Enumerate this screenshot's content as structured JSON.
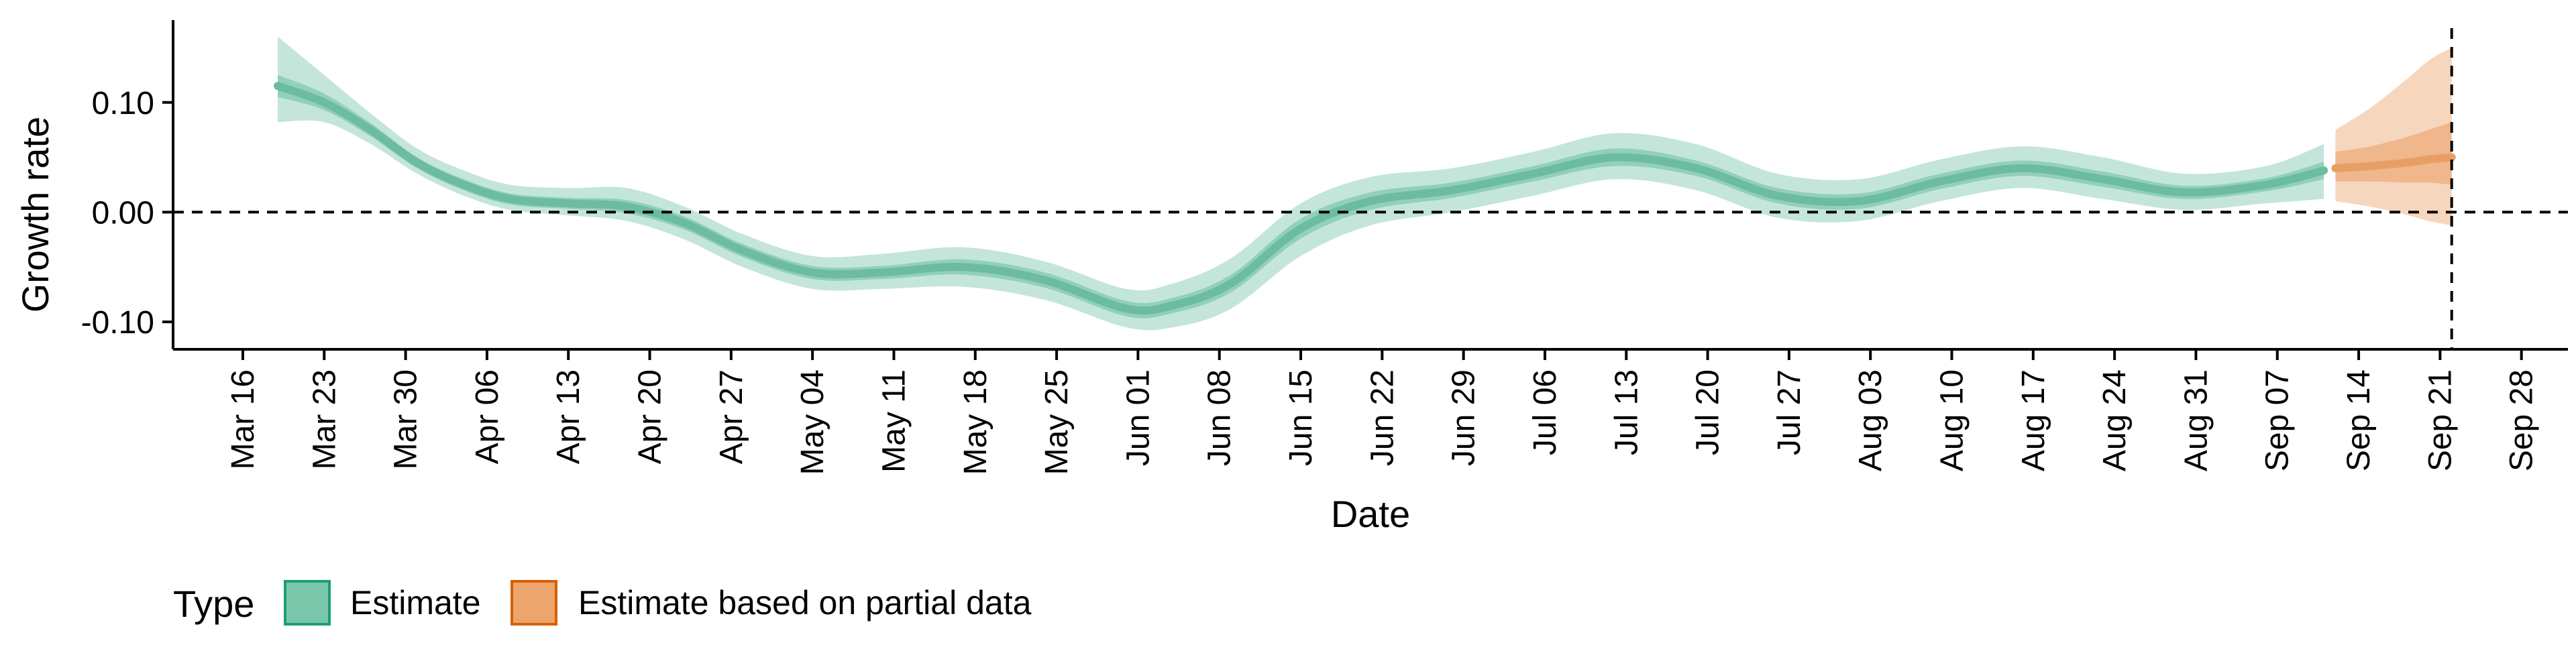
{
  "chart_data": {
    "type": "area",
    "ylabel": "Growth rate",
    "xlabel": "Date",
    "y_ticks": [
      -0.1,
      0.0,
      0.1
    ],
    "y_tick_labels": [
      "-0.10",
      "0.00",
      "0.10"
    ],
    "ylim": [
      -0.125,
      0.175
    ],
    "xlim": [
      "2020-03-10",
      "2020-10-02"
    ],
    "x_ticks": [
      "2020-03-16",
      "2020-03-23",
      "2020-03-30",
      "2020-04-06",
      "2020-04-13",
      "2020-04-20",
      "2020-04-27",
      "2020-05-04",
      "2020-05-11",
      "2020-05-18",
      "2020-05-25",
      "2020-06-01",
      "2020-06-08",
      "2020-06-15",
      "2020-06-22",
      "2020-06-29",
      "2020-07-06",
      "2020-07-13",
      "2020-07-20",
      "2020-07-27",
      "2020-08-03",
      "2020-08-10",
      "2020-08-17",
      "2020-08-24",
      "2020-08-31",
      "2020-09-07",
      "2020-09-14",
      "2020-09-21",
      "2020-09-28"
    ],
    "x_tick_labels": [
      "Mar 16",
      "Mar 23",
      "Mar 30",
      "Apr 06",
      "Apr 13",
      "Apr 20",
      "Apr 27",
      "May 04",
      "May 11",
      "May 18",
      "May 25",
      "Jun 01",
      "Jun 08",
      "Jun 15",
      "Jun 22",
      "Jun 29",
      "Jul 06",
      "Jul 13",
      "Jul 20",
      "Jul 27",
      "Aug 03",
      "Aug 10",
      "Aug 17",
      "Aug 24",
      "Aug 31",
      "Sep 07",
      "Sep 14",
      "Sep 21",
      "Sep 28"
    ],
    "hline_y": 0,
    "vline_x": "2020-09-22",
    "grid": false,
    "legend": {
      "title": "Type",
      "position": "bottom-left",
      "items": [
        {
          "label": "Estimate",
          "fill": "#7ac7ab",
          "stroke": "#1b9e77"
        },
        {
          "label": "Estimate based on partial data",
          "fill": "#eca56c",
          "stroke": "#d95f02"
        }
      ]
    },
    "series": [
      {
        "name": "Estimate",
        "colors": {
          "outer": "#c4e6da",
          "inner": "#92d0b9",
          "median": "#6cbc9f"
        },
        "points": [
          {
            "x": "2020-03-19",
            "median": 0.115,
            "lo90": 0.082,
            "hi90": 0.16,
            "lo50": 0.105,
            "hi50": 0.125
          },
          {
            "x": "2020-03-23",
            "median": 0.1,
            "lo90": 0.082,
            "hi90": 0.125,
            "lo50": 0.093,
            "hi50": 0.108
          },
          {
            "x": "2020-03-27",
            "median": 0.075,
            "lo90": 0.062,
            "hi90": 0.09,
            "lo50": 0.069,
            "hi50": 0.081
          },
          {
            "x": "2020-03-31",
            "median": 0.045,
            "lo90": 0.035,
            "hi90": 0.058,
            "lo50": 0.04,
            "hi50": 0.05
          },
          {
            "x": "2020-04-04",
            "median": 0.025,
            "lo90": 0.015,
            "hi90": 0.038,
            "lo50": 0.02,
            "hi50": 0.03
          },
          {
            "x": "2020-04-08",
            "median": 0.012,
            "lo90": 0.002,
            "hi90": 0.025,
            "lo50": 0.007,
            "hi50": 0.017
          },
          {
            "x": "2020-04-13",
            "median": 0.008,
            "lo90": -0.003,
            "hi90": 0.022,
            "lo50": 0.003,
            "hi50": 0.013
          },
          {
            "x": "2020-04-18",
            "median": 0.005,
            "lo90": -0.008,
            "hi90": 0.022,
            "lo50": -0.001,
            "hi50": 0.011
          },
          {
            "x": "2020-04-23",
            "median": -0.01,
            "lo90": -0.025,
            "hi90": 0.005,
            "lo50": -0.016,
            "hi50": -0.004
          },
          {
            "x": "2020-04-28",
            "median": -0.035,
            "lo90": -0.05,
            "hi90": -0.02,
            "lo50": -0.041,
            "hi50": -0.029
          },
          {
            "x": "2020-05-04",
            "median": -0.055,
            "lo90": -0.07,
            "hi90": -0.04,
            "lo50": -0.061,
            "hi50": -0.049
          },
          {
            "x": "2020-05-10",
            "median": -0.055,
            "lo90": -0.07,
            "hi90": -0.038,
            "lo50": -0.061,
            "hi50": -0.049
          },
          {
            "x": "2020-05-17",
            "median": -0.05,
            "lo90": -0.068,
            "hi90": -0.032,
            "lo50": -0.057,
            "hi50": -0.043
          },
          {
            "x": "2020-05-24",
            "median": -0.062,
            "lo90": -0.08,
            "hi90": -0.045,
            "lo50": -0.069,
            "hi50": -0.055
          },
          {
            "x": "2020-05-31",
            "median": -0.088,
            "lo90": -0.105,
            "hi90": -0.07,
            "lo50": -0.095,
            "hi50": -0.081
          },
          {
            "x": "2020-06-04",
            "median": -0.085,
            "lo90": -0.105,
            "hi90": -0.065,
            "lo50": -0.092,
            "hi50": -0.078
          },
          {
            "x": "2020-06-09",
            "median": -0.065,
            "lo90": -0.088,
            "hi90": -0.042,
            "lo50": -0.073,
            "hi50": -0.057
          },
          {
            "x": "2020-06-15",
            "median": -0.015,
            "lo90": -0.04,
            "hi90": 0.008,
            "lo50": -0.024,
            "hi50": -0.006
          },
          {
            "x": "2020-06-21",
            "median": 0.01,
            "lo90": -0.012,
            "hi90": 0.032,
            "lo50": 0.002,
            "hi50": 0.018
          },
          {
            "x": "2020-06-28",
            "median": 0.02,
            "lo90": 0.0,
            "hi90": 0.04,
            "lo50": 0.013,
            "hi50": 0.027
          },
          {
            "x": "2020-07-05",
            "median": 0.035,
            "lo90": 0.015,
            "hi90": 0.055,
            "lo50": 0.028,
            "hi50": 0.042
          },
          {
            "x": "2020-07-12",
            "median": 0.05,
            "lo90": 0.03,
            "hi90": 0.072,
            "lo50": 0.042,
            "hi50": 0.058
          },
          {
            "x": "2020-07-19",
            "median": 0.04,
            "lo90": 0.02,
            "hi90": 0.062,
            "lo50": 0.033,
            "hi50": 0.047
          },
          {
            "x": "2020-07-26",
            "median": 0.015,
            "lo90": -0.005,
            "hi90": 0.035,
            "lo50": 0.008,
            "hi50": 0.022
          },
          {
            "x": "2020-08-02",
            "median": 0.01,
            "lo90": -0.008,
            "hi90": 0.03,
            "lo50": 0.003,
            "hi50": 0.017
          },
          {
            "x": "2020-08-09",
            "median": 0.028,
            "lo90": 0.01,
            "hi90": 0.048,
            "lo50": 0.021,
            "hi50": 0.035
          },
          {
            "x": "2020-08-16",
            "median": 0.04,
            "lo90": 0.022,
            "hi90": 0.06,
            "lo50": 0.033,
            "hi50": 0.047
          },
          {
            "x": "2020-08-23",
            "median": 0.03,
            "lo90": 0.012,
            "hi90": 0.05,
            "lo50": 0.023,
            "hi50": 0.037
          },
          {
            "x": "2020-08-30",
            "median": 0.018,
            "lo90": 0.002,
            "hi90": 0.035,
            "lo50": 0.012,
            "hi50": 0.024
          },
          {
            "x": "2020-09-06",
            "median": 0.025,
            "lo90": 0.008,
            "hi90": 0.042,
            "lo50": 0.019,
            "hi50": 0.031
          },
          {
            "x": "2020-09-11",
            "median": 0.038,
            "lo90": 0.012,
            "hi90": 0.062,
            "lo50": 0.03,
            "hi50": 0.046
          }
        ]
      },
      {
        "name": "Estimate based on partial data",
        "colors": {
          "outer": "#f6d6bd",
          "inner": "#efb78b",
          "median": "#e79f65"
        },
        "points": [
          {
            "x": "2020-09-12",
            "median": 0.04,
            "lo90": 0.01,
            "hi90": 0.075,
            "lo50": 0.028,
            "hi50": 0.055
          },
          {
            "x": "2020-09-15",
            "median": 0.042,
            "lo90": 0.005,
            "hi90": 0.095,
            "lo50": 0.028,
            "hi50": 0.06
          },
          {
            "x": "2020-09-18",
            "median": 0.045,
            "lo90": -0.002,
            "hi90": 0.12,
            "lo50": 0.027,
            "hi50": 0.068
          },
          {
            "x": "2020-09-20",
            "median": 0.048,
            "lo90": -0.008,
            "hi90": 0.138,
            "lo50": 0.027,
            "hi50": 0.075
          },
          {
            "x": "2020-09-22",
            "median": 0.05,
            "lo90": -0.012,
            "hi90": 0.15,
            "lo50": 0.025,
            "hi50": 0.082
          }
        ]
      }
    ]
  }
}
